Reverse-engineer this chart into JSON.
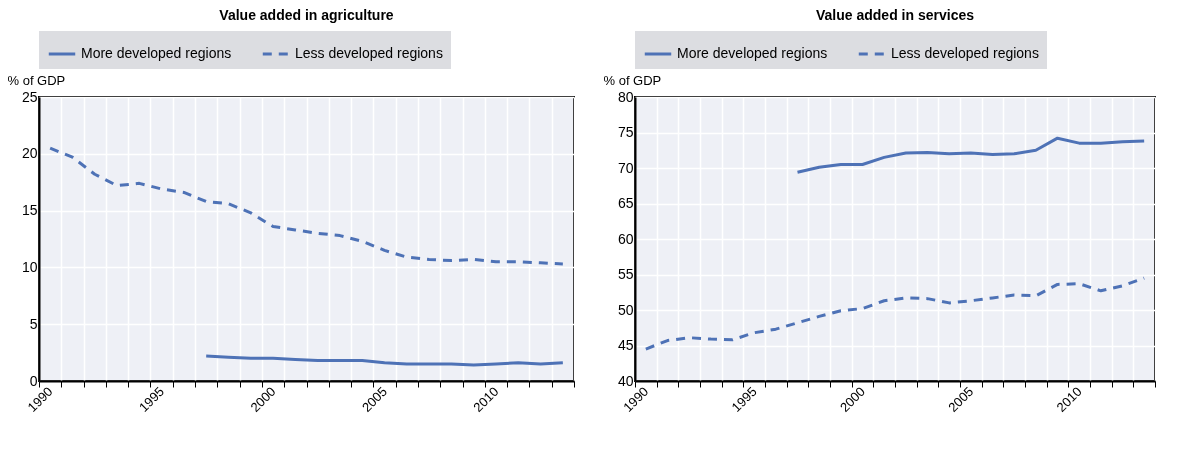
{
  "chart_data": [
    {
      "type": "line",
      "title": "Value added in agriculture",
      "ylabel": "% of GDP",
      "categories": [
        "1990",
        null,
        null,
        null,
        null,
        "1995",
        null,
        null,
        null,
        null,
        "2000",
        null,
        null,
        null,
        null,
        "2005",
        null,
        null,
        null,
        null,
        "2010",
        null,
        null,
        null
      ],
      "ylim": [
        0,
        25
      ],
      "yticks": [
        0,
        5,
        10,
        15,
        20,
        25
      ],
      "grid": true,
      "legend": "top",
      "series": [
        {
          "name": "More developed regions",
          "color": "#4e72b6",
          "line_style": "solid",
          "values": [
            null,
            null,
            null,
            null,
            null,
            null,
            null,
            2.2,
            2.1,
            2.0,
            2.0,
            1.9,
            1.8,
            1.8,
            1.8,
            1.6,
            1.5,
            1.5,
            1.5,
            1.4,
            1.5,
            1.6,
            1.5,
            1.6
          ]
        },
        {
          "name": "Less developed regions",
          "color": "#4e72b6",
          "line_style": "dashed",
          "values": [
            20.5,
            19.7,
            18.2,
            17.2,
            17.4,
            16.9,
            16.6,
            15.8,
            15.6,
            14.8,
            13.6,
            13.3,
            13.0,
            12.8,
            12.3,
            11.5,
            10.9,
            10.7,
            10.6,
            10.7,
            10.5,
            10.5,
            10.4,
            10.3
          ]
        }
      ]
    },
    {
      "type": "line",
      "title": "Value added in services",
      "ylabel": "% of GDP",
      "categories": [
        "1990",
        null,
        null,
        null,
        null,
        "1995",
        null,
        null,
        null,
        null,
        "2000",
        null,
        null,
        null,
        null,
        "2005",
        null,
        null,
        null,
        null,
        "2010",
        null,
        null,
        null
      ],
      "ylim": [
        40,
        80
      ],
      "yticks": [
        40,
        45,
        50,
        55,
        60,
        65,
        70,
        75,
        80
      ],
      "grid": true,
      "legend": "top",
      "series": [
        {
          "name": "More developed regions",
          "color": "#4e72b6",
          "line_style": "solid",
          "values": [
            null,
            null,
            null,
            null,
            null,
            null,
            null,
            69.4,
            70.1,
            70.5,
            70.5,
            71.5,
            72.1,
            72.2,
            72.0,
            72.1,
            71.9,
            72.0,
            72.5,
            74.2,
            73.5,
            73.5,
            73.7,
            73.8
          ]
        },
        {
          "name": "Less developed regions",
          "color": "#4e72b6",
          "line_style": "dashed",
          "values": [
            44.5,
            45.7,
            46.1,
            45.9,
            45.8,
            46.8,
            47.3,
            48.2,
            49.1,
            49.9,
            50.2,
            51.3,
            51.7,
            51.6,
            51.0,
            51.3,
            51.7,
            52.1,
            52.0,
            53.6,
            53.7,
            52.7,
            53.4,
            54.5
          ]
        }
      ]
    }
  ]
}
